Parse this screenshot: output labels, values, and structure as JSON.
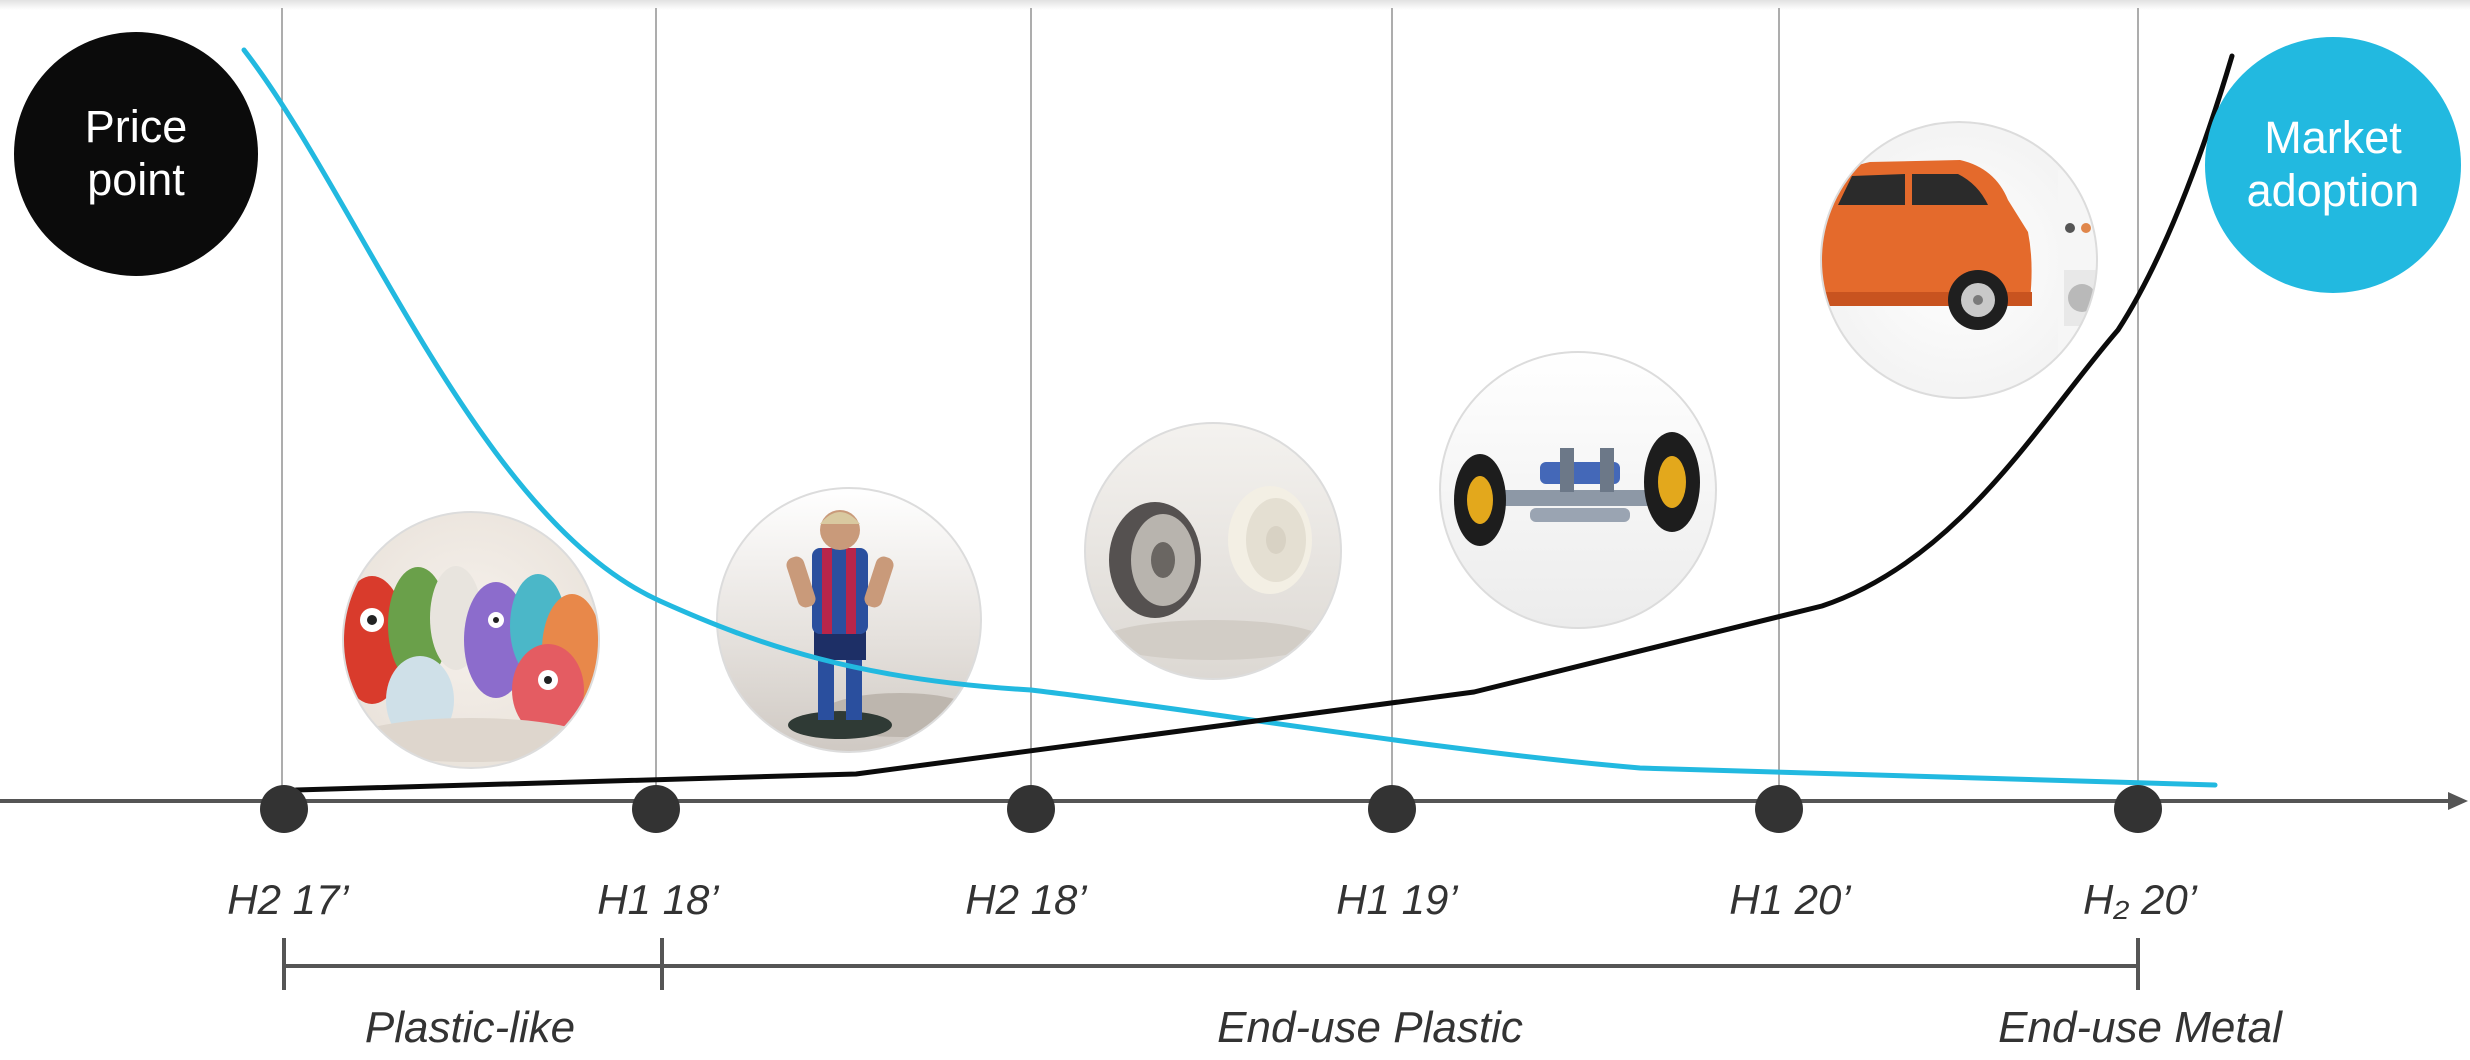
{
  "badges": {
    "price": "Price\npoint",
    "market": "Market\nadoption"
  },
  "timeline": [
    "H2 17’",
    "H1 18’",
    "H2 18’",
    "H1 19’",
    "H1 20’",
    "H₂ 20’"
  ],
  "phases": [
    "Plastic-like",
    "End-use Plastic",
    "End-use Metal"
  ],
  "colors": {
    "price_curve": "#22b9e0",
    "adoption_curve": "#0b0b0b",
    "axis": "#555555"
  },
  "thumbnails": [
    {
      "name": "toy-figurines-photo",
      "subject": "toy figurines"
    },
    {
      "name": "football-player-figurine-photo",
      "subject": "football player figurine"
    },
    {
      "name": "wheel-rims-photo",
      "subject": "wheel rims"
    },
    {
      "name": "car-suspension-photo",
      "subject": "car suspension"
    },
    {
      "name": "orange-car-photo",
      "subject": "orange car"
    }
  ]
}
